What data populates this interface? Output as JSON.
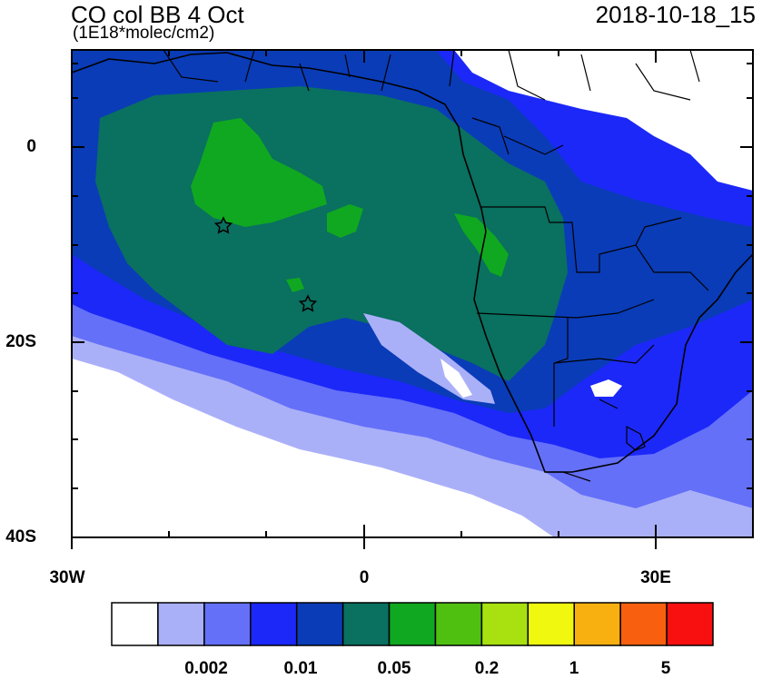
{
  "header": {
    "title": "CO col BB 4 Oct",
    "units": "(1E18*molec/cm2)",
    "timestamp": "2018-10-18_15"
  },
  "map": {
    "lon_range": [
      -30,
      40
    ],
    "lat_range": [
      -40,
      10
    ],
    "y_ticks": [
      "0",
      "20S",
      "40S"
    ],
    "x_ticks": [
      "30W",
      "0",
      "30E"
    ],
    "markers": [
      {
        "type": "star",
        "lon": -14.4,
        "lat": -7.9
      },
      {
        "type": "star",
        "lon": -5.7,
        "lat": -15.9
      }
    ]
  },
  "colorbar": {
    "colors": [
      "#ffffff",
      "#aab0f8",
      "#6470f8",
      "#1c28f8",
      "#0a3cb8",
      "#0a7060",
      "#10a820",
      "#50c010",
      "#a8e010",
      "#f0f810",
      "#f8b010",
      "#f86010",
      "#f81010"
    ],
    "labels": [
      "0.002",
      "0.01",
      "0.05",
      "0.2",
      "1",
      "5"
    ]
  }
}
